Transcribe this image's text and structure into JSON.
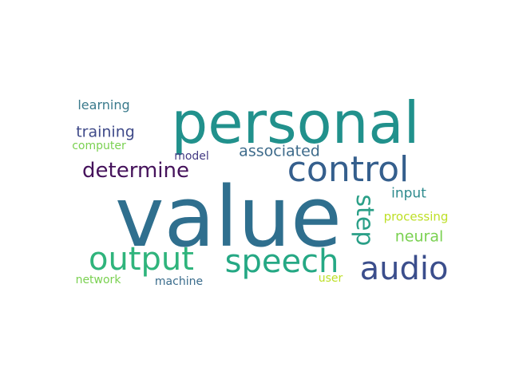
{
  "words": [
    {
      "id": "value",
      "text": "value",
      "color": "#2f6f8e"
    },
    {
      "id": "personal",
      "text": "personal",
      "color": "#21918c"
    },
    {
      "id": "control",
      "text": "control",
      "color": "#355f8d"
    },
    {
      "id": "output",
      "text": "output",
      "color": "#2fb47c"
    },
    {
      "id": "speech",
      "text": "speech",
      "color": "#25a884"
    },
    {
      "id": "audio",
      "text": "audio",
      "color": "#3b4e8c"
    },
    {
      "id": "determine",
      "text": "determine",
      "color": "#45125b"
    },
    {
      "id": "step",
      "text": "step",
      "color": "#2a9f87"
    },
    {
      "id": "associated",
      "text": "associated",
      "color": "#3e6b8b"
    },
    {
      "id": "training",
      "text": "training",
      "color": "#3f4a89"
    },
    {
      "id": "neural",
      "text": "neural",
      "color": "#7ad151"
    },
    {
      "id": "input",
      "text": "input",
      "color": "#2d8a8d"
    },
    {
      "id": "learning",
      "text": "learning",
      "color": "#3a7a8c"
    },
    {
      "id": "computer",
      "text": "computer",
      "color": "#7ad151"
    },
    {
      "id": "model",
      "text": "model",
      "color": "#443a83"
    },
    {
      "id": "processing",
      "text": "processing",
      "color": "#bddf26"
    },
    {
      "id": "network",
      "text": "network",
      "color": "#7ad151"
    },
    {
      "id": "machine",
      "text": "machine",
      "color": "#3a6c8c"
    },
    {
      "id": "user",
      "text": "user",
      "color": "#bddf26"
    }
  ]
}
